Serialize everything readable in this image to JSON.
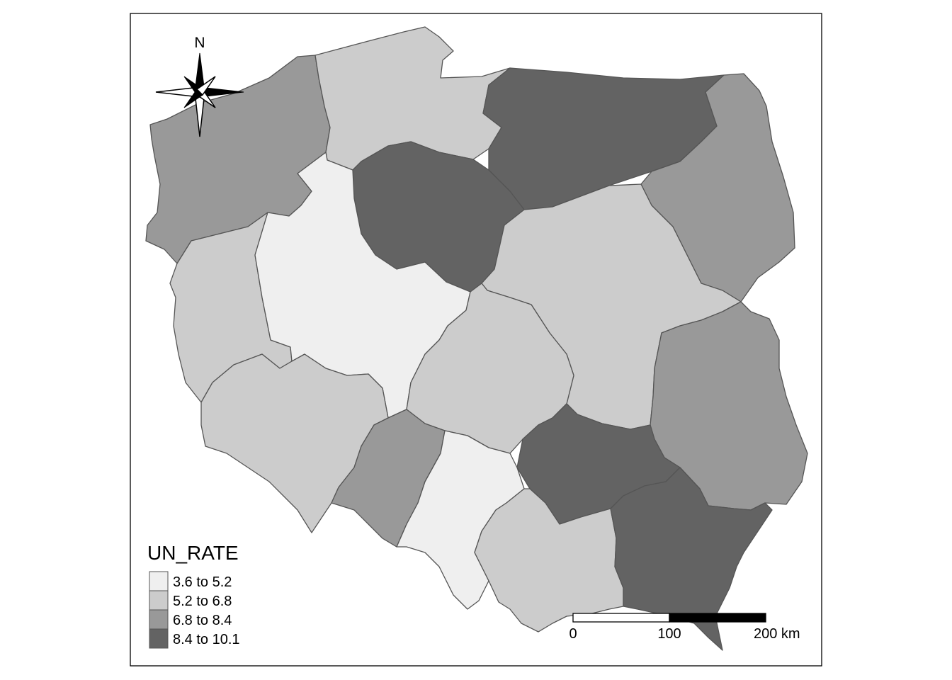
{
  "legend": {
    "title": "UN_RATE",
    "classes": [
      {
        "label": "3.6 to 5.2",
        "color": "#efefef"
      },
      {
        "label": "5.2 to 6.8",
        "color": "#cccccc"
      },
      {
        "label": "6.8 to 8.4",
        "color": "#999999"
      },
      {
        "label": "8.4 to 10.1",
        "color": "#636363"
      }
    ]
  },
  "north_arrow": {
    "label": "N"
  },
  "scale_bar": {
    "ticks": [
      "0",
      "100",
      "200 km"
    ]
  },
  "regions": [
    {
      "id": "zachodniopomorskie",
      "class": 2
    },
    {
      "id": "pomorskie",
      "class": 1
    },
    {
      "id": "warminsko-mazurskie",
      "class": 3
    },
    {
      "id": "podlaskie",
      "class": 2
    },
    {
      "id": "kujawsko-pomorskie",
      "class": 3
    },
    {
      "id": "lubuskie",
      "class": 1
    },
    {
      "id": "wielkopolskie",
      "class": 0
    },
    {
      "id": "mazowieckie",
      "class": 1
    },
    {
      "id": "lodzkie",
      "class": 1
    },
    {
      "id": "lubelskie",
      "class": 2
    },
    {
      "id": "dolnoslaskie",
      "class": 1
    },
    {
      "id": "opolskie",
      "class": 2
    },
    {
      "id": "slaskie",
      "class": 0
    },
    {
      "id": "swietokrzyskie",
      "class": 3
    },
    {
      "id": "malopolskie",
      "class": 1
    },
    {
      "id": "podkarpackie",
      "class": 3
    }
  ]
}
